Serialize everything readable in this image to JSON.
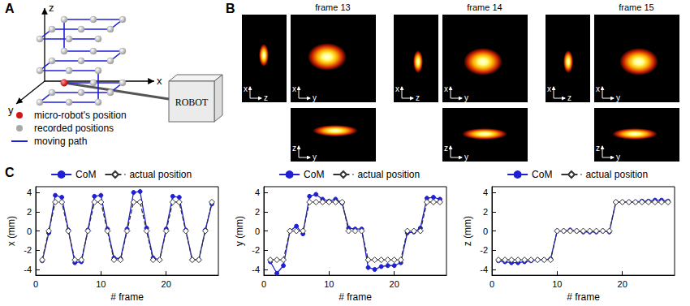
{
  "panel_a": {
    "letter": "A",
    "axes": {
      "x": "x",
      "y": "y",
      "z": "z"
    },
    "robot": "ROBOT",
    "legend": [
      {
        "label": "micro-robot's position",
        "color": "#d01818"
      },
      {
        "label": "recorded positions",
        "color": "#a8a8a8"
      },
      {
        "label": "moving path",
        "color": "#1f1fd6"
      }
    ]
  },
  "panel_b": {
    "letter": "B",
    "frames": [
      {
        "title": "frame 13"
      },
      {
        "title": "frame 14"
      },
      {
        "title": "frame 15"
      }
    ],
    "views": [
      {
        "vertical": "x",
        "horizontal": "z"
      },
      {
        "vertical": "x",
        "horizontal": "y"
      },
      {
        "vertical": "z",
        "horizontal": "y"
      }
    ]
  },
  "panel_c": {
    "letter": "C"
  },
  "chart_data": [
    {
      "type": "line",
      "xlabel": "# frame",
      "ylabel": "x (mm)",
      "x": [
        1,
        2,
        3,
        4,
        5,
        6,
        7,
        8,
        9,
        10,
        11,
        12,
        13,
        14,
        15,
        16,
        17,
        18,
        19,
        20,
        21,
        22,
        23,
        24,
        25,
        26,
        27
      ],
      "xlim": [
        0,
        28
      ],
      "xticks": [
        0,
        10,
        20
      ],
      "ylim": [
        -4.6,
        4.6
      ],
      "yticks": [
        -4,
        -2,
        0,
        2,
        4
      ],
      "grid": false,
      "legend": "top",
      "series": [
        {
          "name": "CoM",
          "color": "#1f1fd6",
          "marker": "circle",
          "line_style": "solid",
          "values": [
            -3.1,
            -0.2,
            3.7,
            3.5,
            0.1,
            -3.3,
            -3.2,
            0.1,
            3.6,
            3.7,
            0.2,
            -2.8,
            -2.9,
            0.2,
            4.0,
            4.1,
            0.3,
            -2.8,
            -3.0,
            0.2,
            3.6,
            3.5,
            0.1,
            -3.0,
            -3.0,
            0.1,
            2.8
          ]
        },
        {
          "name": "actual position",
          "color": "#333333",
          "marker": "open diamond",
          "line_style": "dashed",
          "values": [
            -3,
            0,
            3,
            3,
            0,
            -3,
            -3,
            0,
            3,
            3,
            0,
            -3,
            -3,
            0,
            3,
            3,
            0,
            -3,
            -3,
            0,
            3,
            3,
            0,
            -3,
            -3,
            0,
            3
          ]
        }
      ]
    },
    {
      "type": "line",
      "xlabel": "# frame",
      "ylabel": "y (mm)",
      "x": [
        1,
        2,
        3,
        4,
        5,
        6,
        7,
        8,
        9,
        10,
        11,
        12,
        13,
        14,
        15,
        16,
        17,
        18,
        19,
        20,
        21,
        22,
        23,
        24,
        25,
        26,
        27
      ],
      "xlim": [
        0,
        28
      ],
      "xticks": [
        0,
        10,
        20
      ],
      "ylim": [
        -4.6,
        4.6
      ],
      "yticks": [
        -4,
        -2,
        0,
        2,
        4
      ],
      "grid": false,
      "legend": "top",
      "series": [
        {
          "name": "CoM",
          "color": "#1f1fd6",
          "marker": "circle",
          "line_style": "solid",
          "values": [
            -3.2,
            -4.4,
            -3.6,
            0,
            0.5,
            -0.3,
            3.6,
            3.8,
            3.3,
            3.1,
            3.3,
            2.9,
            0.3,
            0.2,
            0.2,
            -3.8,
            -4.0,
            -3.7,
            -3.6,
            -3.6,
            -3.3,
            -0.2,
            -0.1,
            0.3,
            3.4,
            3.5,
            3.3
          ]
        },
        {
          "name": "actual position",
          "color": "#333333",
          "marker": "open diamond",
          "line_style": "dashed",
          "values": [
            -3,
            -3,
            -3,
            0,
            0,
            0,
            3,
            3,
            3,
            3,
            3,
            3,
            0,
            0,
            0,
            -3,
            -3,
            -3,
            -3,
            -3,
            -3,
            0,
            0,
            0,
            3,
            3,
            3
          ]
        }
      ]
    },
    {
      "type": "line",
      "xlabel": "# frame",
      "ylabel": "z (mm)",
      "x": [
        1,
        2,
        3,
        4,
        5,
        6,
        7,
        8,
        9,
        10,
        11,
        12,
        13,
        14,
        15,
        16,
        17,
        18,
        19,
        20,
        21,
        22,
        23,
        24,
        25,
        26,
        27
      ],
      "xlim": [
        0,
        28
      ],
      "xticks": [
        0,
        10,
        20
      ],
      "ylim": [
        -4.6,
        4.6
      ],
      "yticks": [
        -4,
        -2,
        0,
        2,
        4
      ],
      "grid": false,
      "legend": "top",
      "series": [
        {
          "name": "CoM",
          "color": "#1f1fd6",
          "marker": "circle",
          "line_style": "solid",
          "values": [
            -3.1,
            -3.2,
            -3.3,
            -3.3,
            -3.2,
            -3.1,
            -3.0,
            -3.0,
            -2.9,
            0,
            0,
            0.1,
            0,
            -0.1,
            -0.1,
            -0.1,
            0,
            -0.1,
            3.0,
            3.0,
            3.0,
            3.0,
            3.1,
            3.1,
            3.2,
            3.2,
            3.1
          ]
        },
        {
          "name": "actual position",
          "color": "#333333",
          "marker": "open diamond",
          "line_style": "dashed",
          "values": [
            -3,
            -3,
            -3,
            -3,
            -3,
            -3,
            -3,
            -3,
            -3,
            0,
            0,
            0,
            0,
            0,
            0,
            0,
            0,
            0,
            3,
            3,
            3,
            3,
            3,
            3,
            3,
            3,
            3
          ]
        }
      ]
    }
  ]
}
